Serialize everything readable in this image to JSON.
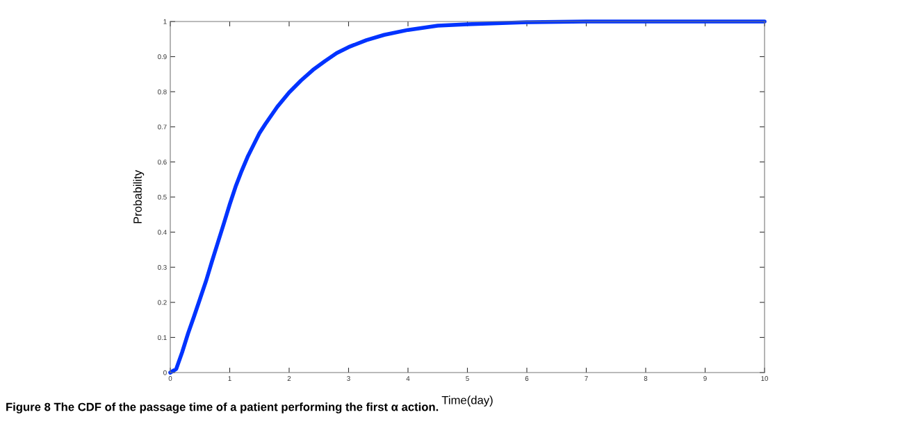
{
  "chart_data": {
    "type": "line",
    "xlabel": "Time(day)",
    "ylabel": "Probability",
    "annotations": [
      "Figure 8 The CDF of the passage time of a patient performing the first α action."
    ],
    "x": [
      0,
      0.1,
      0.2,
      0.3,
      0.4,
      0.5,
      0.6,
      0.7,
      0.8,
      0.9,
      1.0,
      1.1,
      1.2,
      1.3,
      1.4,
      1.5,
      1.6,
      1.8,
      2.0,
      2.2,
      2.4,
      2.6,
      2.8,
      3.0,
      3.3,
      3.6,
      4.0,
      4.5,
      5.0,
      5.5,
      6.0,
      7.0,
      8.0,
      9.0,
      10.0
    ],
    "series": [
      {
        "color": "#0033ff",
        "values": [
          0,
          0.01,
          0.058,
          0.112,
          0.16,
          0.21,
          0.26,
          0.316,
          0.37,
          0.424,
          0.479,
          0.53,
          0.574,
          0.614,
          0.648,
          0.682,
          0.708,
          0.757,
          0.798,
          0.832,
          0.862,
          0.887,
          0.91,
          0.927,
          0.947,
          0.962,
          0.976,
          0.988,
          0.992,
          0.995,
          0.998,
          1,
          1,
          1,
          1
        ]
      }
    ],
    "xlim": [
      0,
      10
    ],
    "ylim": [
      0,
      1
    ],
    "xticks": [
      0,
      1,
      2,
      3,
      4,
      5,
      6,
      7,
      8,
      9,
      10
    ],
    "yticks": [
      0,
      {
        "value": 0.1,
        "label": "0.1"
      },
      {
        "value": 0.2,
        "label": "0.2"
      },
      {
        "value": 0.3,
        "label": "0.3"
      },
      {
        "value": 0.4,
        "label": "0.4"
      },
      {
        "value": 0.5,
        "label": "0.5"
      },
      {
        "value": 0.6,
        "label": "0.6"
      },
      {
        "value": 0.7,
        "label": "0.7"
      },
      {
        "value": 0.8,
        "label": "0.8"
      },
      {
        "value": 0.9,
        "label": "0.9"
      },
      1
    ],
    "grid": false,
    "legend": false
  }
}
